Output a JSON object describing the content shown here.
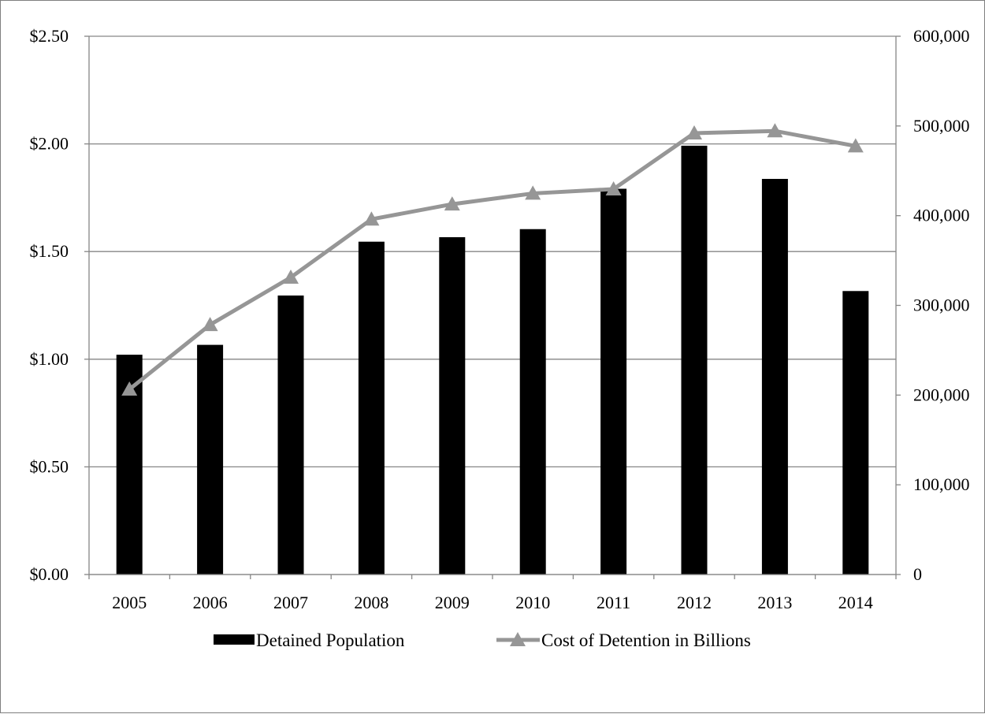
{
  "chart_data": {
    "type": "bar",
    "categories": [
      "2005",
      "2006",
      "2007",
      "2008",
      "2009",
      "2010",
      "2011",
      "2012",
      "2013",
      "2014"
    ],
    "series": [
      {
        "name": "Detained Population",
        "type": "bar",
        "axis": "right",
        "values": [
          245000,
          256000,
          311000,
          371000,
          376000,
          385000,
          430000,
          478000,
          441000,
          316000
        ]
      },
      {
        "name": "Cost of Detention in Billions",
        "type": "line",
        "marker": "triangle",
        "axis": "left",
        "values": [
          0.86,
          1.16,
          1.38,
          1.65,
          1.72,
          1.77,
          1.79,
          2.05,
          2.06,
          1.99
        ]
      }
    ],
    "left_axis": {
      "ylim": [
        0,
        2.5
      ],
      "ticks": [
        0,
        0.5,
        1.0,
        1.5,
        2.0,
        2.5
      ],
      "tick_labels": [
        "$0.00",
        "$0.50",
        "$1.00",
        "$1.50",
        "$2.00",
        "$2.50"
      ]
    },
    "right_axis": {
      "ylim": [
        0,
        600000
      ],
      "ticks": [
        0,
        100000,
        200000,
        300000,
        400000,
        500000,
        600000
      ],
      "tick_labels": [
        "0",
        "100,000",
        "200,000",
        "300,000",
        "400,000",
        "500,000",
        "600,000"
      ]
    },
    "grid": true,
    "legend_position": "bottom",
    "title": "",
    "xlabel": "",
    "ylabel": ""
  },
  "colors": {
    "bar": "#000000",
    "line": "#969696",
    "grid": "#868686",
    "axis": "#868686"
  }
}
